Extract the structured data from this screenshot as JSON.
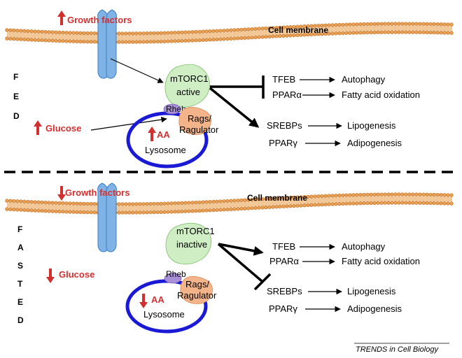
{
  "colors": {
    "membrane": "#e8a055",
    "membrane_stroke": "#c9752a",
    "receptor": "#7fb3e6",
    "receptor_stroke": "#3a7fc8",
    "mtorc1": "#cfeec3",
    "rheb": "#a98ed8",
    "rags": "#f4b48a",
    "lysosome": "#1a1ad6",
    "arrow_up_down": "#d32f2f",
    "text": "#000000"
  },
  "fed": {
    "letters": [
      "F",
      "E",
      "D"
    ],
    "growth_factors": "Growth factors",
    "cell_membrane": "Cell membrane",
    "glucose": "Glucose",
    "aa": "AA",
    "mtorc1_line1": "mTORC1",
    "mtorc1_line2": "active",
    "rheb": "Rheb",
    "rags_line1": "Rags/",
    "rags_line2": "Ragulator",
    "lysosome": "Lysosome",
    "targets": [
      {
        "name": "TFEB",
        "outcome": "Autophagy"
      },
      {
        "name": "PPARα",
        "outcome": "Fatty acid oxidation"
      },
      {
        "name": "SREBPs",
        "outcome": "Lipogenesis"
      },
      {
        "name": "PPARγ",
        "outcome": "Adipogenesis"
      }
    ]
  },
  "fasted": {
    "letters": [
      "F",
      "A",
      "S",
      "T",
      "E",
      "D"
    ],
    "growth_factors": "Growth factors",
    "cell_membrane": "Cell membrane",
    "glucose": "Glucose",
    "aa": "AA",
    "mtorc1_line1": "mTORC1",
    "mtorc1_line2": "inactive",
    "rheb": "Rheb",
    "rags_line1": "Rags/",
    "rags_line2": "Ragulator",
    "lysosome": "Lysosome",
    "targets": [
      {
        "name": "TFEB",
        "outcome": "Autophagy"
      },
      {
        "name": "PPARα",
        "outcome": "Fatty acid oxidation"
      },
      {
        "name": "SREBPs",
        "outcome": "Lipogenesis"
      },
      {
        "name": "PPARγ",
        "outcome": "Adipogenesis"
      }
    ]
  },
  "footer": "TRENDS in Cell Biology"
}
